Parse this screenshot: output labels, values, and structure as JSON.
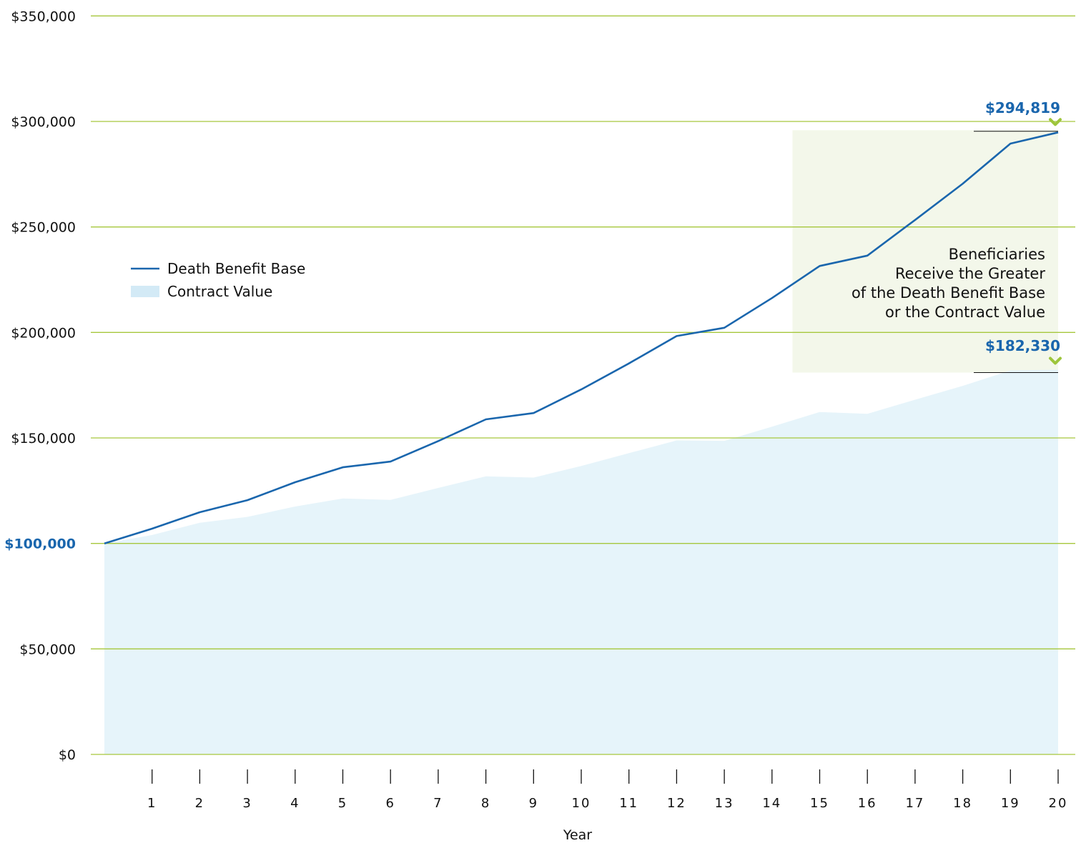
{
  "chart_data": {
    "type": "line",
    "xlabel": "Year",
    "ylabel": "",
    "ylim": [
      0,
      350000
    ],
    "y_ticks": [
      {
        "value": 0,
        "label": "$0",
        "highlight": false
      },
      {
        "value": 50000,
        "label": "$50,000",
        "highlight": false
      },
      {
        "value": 100000,
        "label": "$100,000",
        "highlight": true
      },
      {
        "value": 150000,
        "label": "$150,000",
        "highlight": false
      },
      {
        "value": 200000,
        "label": "$200,000",
        "highlight": false
      },
      {
        "value": 250000,
        "label": "$250,000",
        "highlight": false
      },
      {
        "value": 300000,
        "label": "$300,000",
        "highlight": false
      },
      {
        "value": 350000,
        "label": "$350,000",
        "highlight": false
      }
    ],
    "x_ticks": [
      "1",
      "2",
      "3",
      "4",
      "5",
      "6",
      "7",
      "8",
      "9",
      "10",
      "11",
      "12",
      "13",
      "14",
      "15",
      "16",
      "17",
      "18",
      "19",
      "20"
    ],
    "x": [
      0,
      1,
      2,
      3,
      4,
      5,
      6,
      7,
      8,
      9,
      10,
      11,
      12,
      13,
      14,
      15,
      16,
      17,
      18,
      19,
      20
    ],
    "grid": true,
    "legend_position": "left",
    "series": [
      {
        "name": "Death Benefit Base",
        "kind": "line",
        "color": "#1a66ad",
        "values": [
          100000,
          107000,
          114800,
          120500,
          129000,
          136100,
          138800,
          148500,
          158800,
          161800,
          173000,
          185300,
          198300,
          202200,
          216300,
          231500,
          236400,
          253300,
          270500,
          289500,
          294819
        ]
      },
      {
        "name": "Contract Value",
        "kind": "area",
        "color": "#e6f4fa",
        "values": [
          100000,
          104000,
          109800,
          112600,
          117500,
          121300,
          120600,
          126300,
          131800,
          131200,
          136700,
          142800,
          148800,
          148600,
          155300,
          162300,
          161400,
          168100,
          174700,
          182000,
          182330
        ]
      }
    ],
    "annotations": {
      "callout_lines": [
        "Beneficiaries",
        "Receive the Greater",
        "of the Death Benefit Base",
        "or the Contract Value"
      ],
      "top_value_label": "$294,819",
      "bottom_value_label": "$182,330",
      "callout_fill": "#f3f7ea",
      "marker_color": "#9dc53b"
    },
    "colors": {
      "gridline": "#a6c73c",
      "tick_mark": "#111111"
    }
  }
}
